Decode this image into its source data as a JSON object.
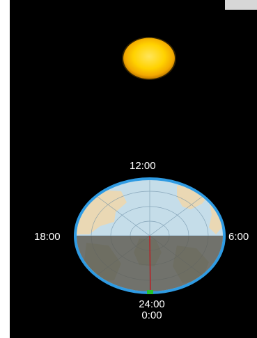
{
  "clock": {
    "top": "12:00",
    "left": "18:00",
    "right": "6:00",
    "bottom_line1": "24:00",
    "bottom_line2": "0:00"
  },
  "colors": {
    "background": "#000000",
    "sun": "#ffd200",
    "ring": "#2f9be3",
    "day": "#eae2cc",
    "night": "#5e5a50",
    "meridian": "#b4262a",
    "marker": "#27c22f"
  },
  "icons": {
    "sun": "sun-icon",
    "globe": "polar-globe-icon"
  }
}
